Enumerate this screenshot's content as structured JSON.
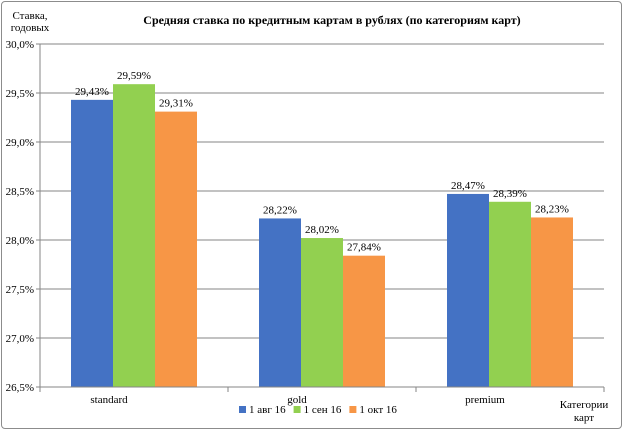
{
  "chart_data": {
    "type": "bar",
    "title": "Средняя ставка по кредитным картам в рублях (по категориям карт)",
    "ylabel_line1": "Ставка,",
    "ylabel_line2": "годовых",
    "xlabel_line1": "Категории",
    "xlabel_line2": "карт",
    "categories": [
      "standard",
      "gold",
      "premium"
    ],
    "ylim": [
      26.5,
      30.0
    ],
    "y_ticks": [
      26.5,
      27.0,
      27.5,
      28.0,
      28.5,
      29.0,
      29.5,
      30.0
    ],
    "y_tick_labels": [
      "26,5%",
      "27,0%",
      "27,5%",
      "28,0%",
      "28,5%",
      "29,0%",
      "29,5%",
      "30,0%"
    ],
    "grid": true,
    "legend_position": "bottom",
    "series": [
      {
        "name": "1 авг 16",
        "color": "#4472c4",
        "values": [
          29.43,
          28.22,
          28.47
        ],
        "labels": [
          "29,43%",
          "28,22%",
          "28,47%"
        ]
      },
      {
        "name": "1 сен 16",
        "color": "#92d050",
        "values": [
          29.59,
          28.02,
          28.39
        ],
        "labels": [
          "29,59%",
          "28,02%",
          "28,39%"
        ]
      },
      {
        "name": "1 окт 16",
        "color": "#f79646",
        "values": [
          29.31,
          27.84,
          28.23
        ],
        "labels": [
          "29,31%",
          "27,84%",
          "28,23%"
        ]
      }
    ]
  }
}
